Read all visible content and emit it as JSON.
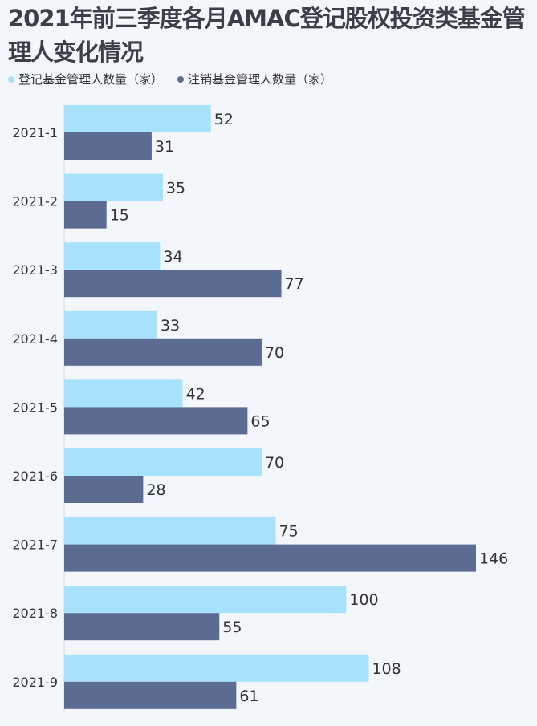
{
  "chart_data": {
    "type": "bar",
    "orientation": "horizontal",
    "title": "2021年前三季度各月AMAC登记股权投资类基金管理人变化情况",
    "categories": [
      "2021-1",
      "2021-2",
      "2021-3",
      "2021-4",
      "2021-5",
      "2021-6",
      "2021-7",
      "2021-8",
      "2021-9"
    ],
    "series": [
      {
        "name": "登记基金管理人数量（家）",
        "values": [
          52,
          35,
          34,
          33,
          42,
          70,
          75,
          100,
          108
        ],
        "color": "#a8e1fb"
      },
      {
        "name": "注销基金管理人数量（家）",
        "values": [
          31,
          15,
          77,
          70,
          65,
          28,
          146,
          55,
          61
        ],
        "color": "#5b6b92"
      }
    ],
    "xlim": [
      0,
      146
    ],
    "legend_position": "top-left",
    "grid": false,
    "data_labels": true
  },
  "colors": {
    "background": "#f3f7fb",
    "axis": "#cfd6df",
    "text": "#333333"
  }
}
